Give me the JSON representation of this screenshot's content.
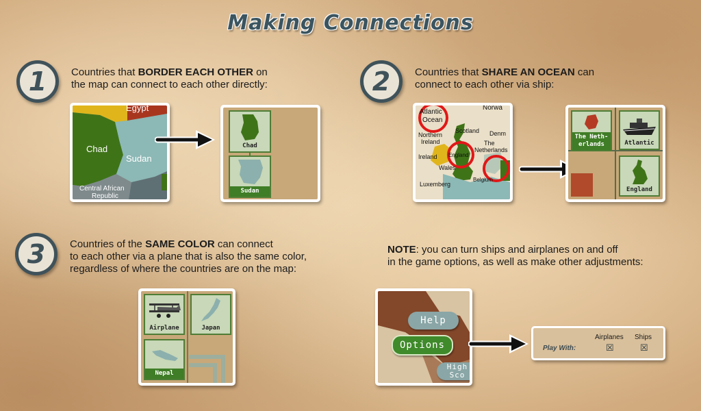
{
  "title": "Making Connections",
  "steps": [
    {
      "number": "1",
      "line1_pre": "Countries that ",
      "line1_bold": "BORDER EACH OTHER",
      "line1_post": " on",
      "line2": "the map can connect to each other directly:",
      "map_labels": [
        "Egypt",
        "Chad",
        "Sudan",
        "Central African",
        "Republic"
      ],
      "cards": [
        "Chad",
        "Sudan"
      ]
    },
    {
      "number": "2",
      "line1_pre": "Countries that ",
      "line1_bold": "SHARE AN OCEAN",
      "line1_post": " can",
      "line2": "connect to each other via ship:",
      "map_labels": [
        "Atlantic",
        "Ocean",
        "Norwa",
        "Scotland",
        "Denm",
        "Northern",
        "Ireland",
        "The",
        "Netherlands",
        "England",
        "Ireland",
        "Wales",
        "Luxemberg",
        "Belgium"
      ],
      "cards": [
        "The Neth-",
        "erlands",
        "Atlantic",
        "England"
      ]
    },
    {
      "number": "3",
      "line1_pre": "Countries of the ",
      "line1_bold": "SAME COLOR",
      "line1_post": " can connect",
      "line2": "to each other via a plane that is also the same color,",
      "line3": "regardless of where the countries are on the map:",
      "cards": [
        "Airplane",
        "Japan",
        "Nepal"
      ]
    }
  ],
  "note": {
    "bold": "NOTE",
    "line1": ": you can turn ships and airplanes on and off",
    "line2": "in the game options, as well as make other adjustments:",
    "menu": [
      "Help",
      "Options",
      "High",
      "Sco"
    ],
    "options_panel": {
      "col1": "Airplanes",
      "col2": "Ships",
      "row_label": "Play With:",
      "check1": "☒",
      "check2": "☒"
    }
  }
}
